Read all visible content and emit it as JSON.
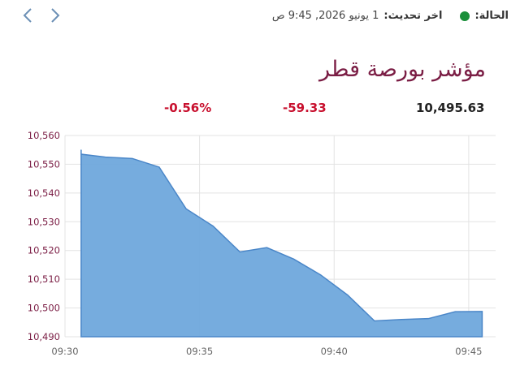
{
  "header": {
    "status_label": "الحالة:",
    "status_color": "#1a8f3a",
    "update_label": "اخر تحديث:",
    "update_value": "1 يونيو 2026, 9:45 ص",
    "nav_prev": "chevron-left-icon",
    "nav_next": "chevron-right-icon"
  },
  "title": "مؤشر بورصة قطر",
  "stats": {
    "value": "10,495.63",
    "change": "-59.33",
    "change_pct": "-0.56%",
    "negative_color": "#c8102e"
  },
  "chart_data": {
    "type": "area",
    "x_ticks": [
      "09:30",
      "09:35",
      "09:40",
      "09:45"
    ],
    "y_ticks": [
      "10,490",
      "10,500",
      "10,510",
      "10,520",
      "10,530",
      "10,540",
      "10,550",
      "10,560"
    ],
    "ylim": [
      10490,
      10560
    ],
    "xlim": [
      0,
      16
    ],
    "x": [
      0.6,
      0.6,
      1.5,
      2.5,
      3.5,
      4.5,
      5.5,
      6.5,
      7.5,
      8.5,
      9.5,
      10.5,
      11.5,
      12.5,
      13.5,
      14.5,
      15.5
    ],
    "values": [
      10555,
      10553.5,
      10552.5,
      10552,
      10549,
      10534.5,
      10528.5,
      10519.5,
      10521,
      10517,
      10511.5,
      10504.5,
      10495.5,
      10496,
      10496.3,
      10498.7,
      10498.8
    ],
    "fill_color": "#6fa8dc",
    "line_color": "#4a86c8",
    "grid": true
  }
}
